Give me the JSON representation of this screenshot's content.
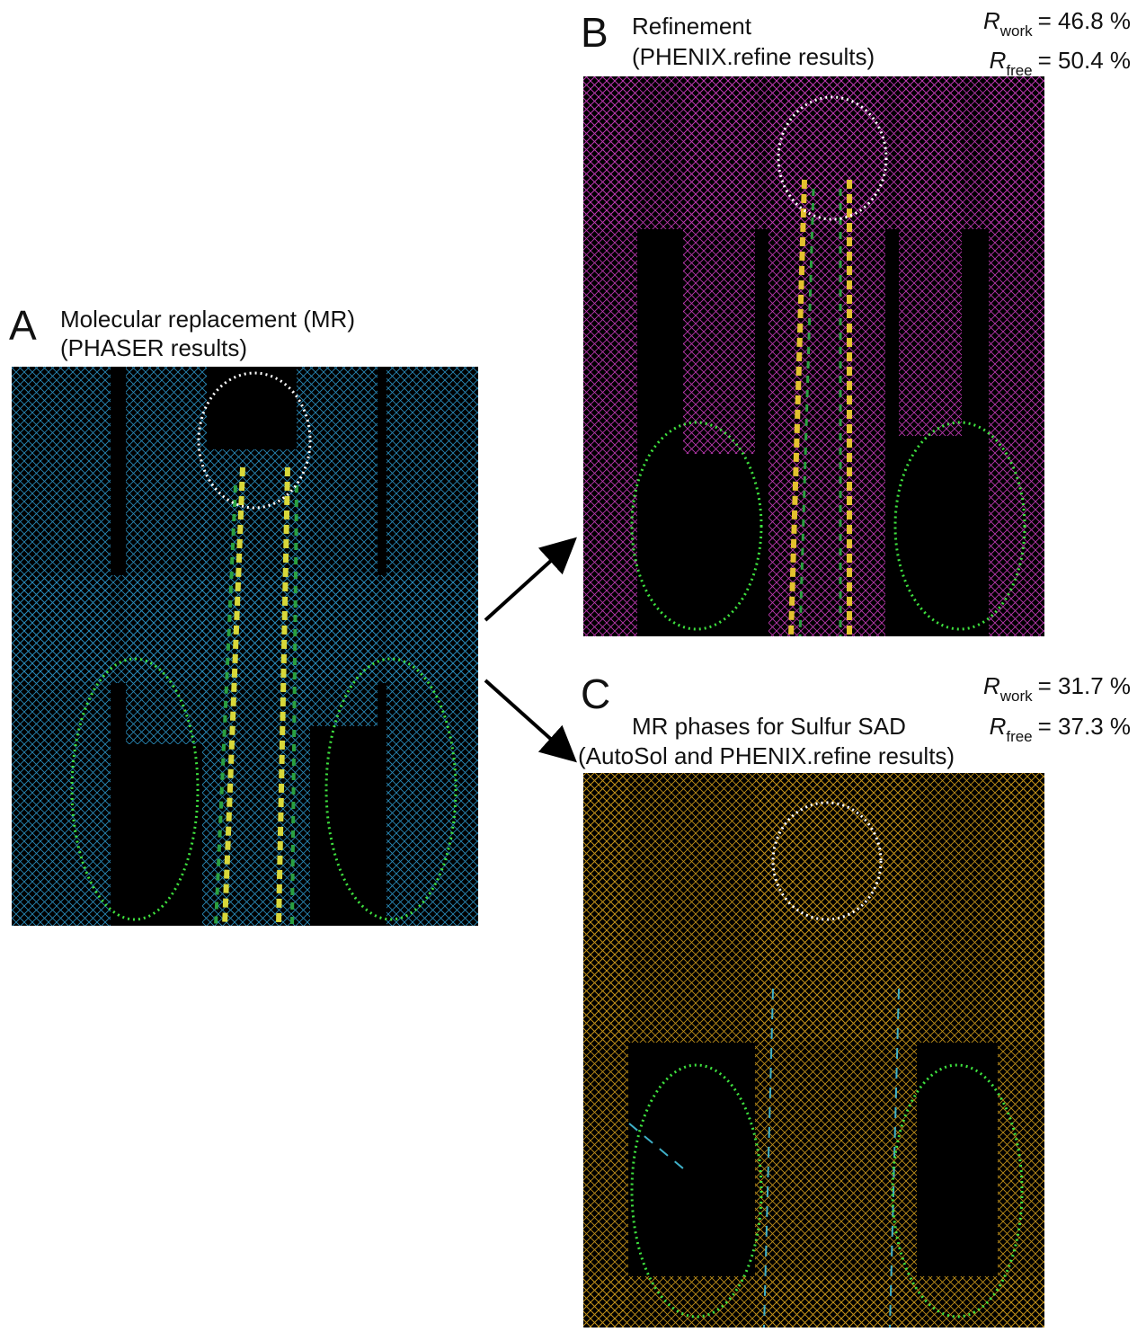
{
  "panels": [
    {
      "letter": "A",
      "title": [
        "Molecular replacement (MR)",
        "(PHASER results)"
      ]
    },
    {
      "letter": "B",
      "title": [
        "Refinement",
        "(PHENIX.refine results)"
      ],
      "r_work": {
        "symbol": "R",
        "subscript": "work",
        "value": "= 46.8 %"
      },
      "r_free": {
        "symbol": "R",
        "subscript": "free",
        "value": "= 50.4 %"
      }
    },
    {
      "letter": "C",
      "title": [
        "MR phases for Sulfur SAD",
        "(AutoSol and PHENIX.refine results)"
      ],
      "r_work": {
        "symbol": "R",
        "subscript": "work",
        "value": "= 31.7 %"
      },
      "r_free": {
        "symbol": "R",
        "subscript": "free",
        "value": "= 37.3 %"
      }
    }
  ]
}
